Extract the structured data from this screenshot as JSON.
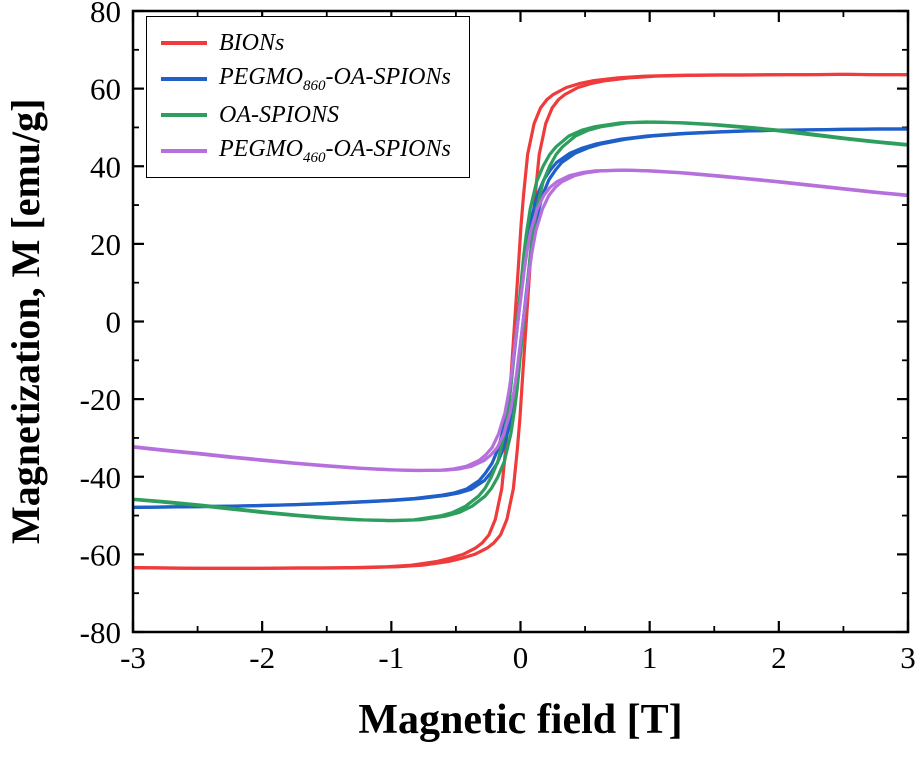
{
  "figure": {
    "background": "#ffffff",
    "frame_color": "#000000"
  },
  "chart_data": {
    "type": "line",
    "title": "",
    "xlabel": "Magnetic field [T]",
    "ylabel": "Magnetization, M [emu/g]",
    "xlim": [
      -3,
      3
    ],
    "ylim": [
      -80,
      80
    ],
    "x_ticks": [
      -3,
      -2,
      -1,
      0,
      1,
      2,
      3
    ],
    "y_ticks": [
      -80,
      -60,
      -40,
      -20,
      0,
      20,
      40,
      60,
      80
    ],
    "x_minor_ticks": [
      -2.5,
      -1.5,
      -0.5,
      0.5,
      1.5,
      2.5
    ],
    "y_minor_ticks": [
      -70,
      -50,
      -30,
      -10,
      10,
      30,
      50,
      70
    ],
    "grid": false,
    "legend_position": "top-left",
    "x_unit": "T",
    "y_unit": "emu/g",
    "x": [
      -3,
      -2.75,
      -2.5,
      -2.25,
      -2,
      -1.75,
      -1.5,
      -1.25,
      -1,
      -0.8,
      -0.6,
      -0.5,
      -0.4,
      -0.3,
      -0.25,
      -0.2,
      -0.15,
      -0.1,
      -0.07,
      -0.05,
      -0.03,
      0,
      0.03,
      0.05,
      0.07,
      0.1,
      0.15,
      0.2,
      0.25,
      0.3,
      0.4,
      0.5,
      0.6,
      0.8,
      1,
      1.25,
      1.5,
      1.75,
      2,
      2.25,
      2.5,
      2.75,
      3
    ],
    "series": [
      {
        "name": "BIONs",
        "label": {
          "pre": "BIONs",
          "sub": "",
          "post": ""
        },
        "color": "#ef3b3b",
        "coercivity_T": 0.045,
        "y": [
          -63.4,
          -63.5,
          -63.6,
          -63.6,
          -63.6,
          -63.5,
          -63.5,
          -63.4,
          -63.2,
          -62.8,
          -61.8,
          -61.0,
          -60.0,
          -58.3,
          -57.0,
          -55.0,
          -51.0,
          -43.0,
          -33.0,
          -25.0,
          -15.0,
          0,
          15.0,
          25.0,
          33.0,
          43.0,
          51.0,
          55.0,
          57.2,
          58.5,
          60.3,
          61.3,
          62.0,
          62.8,
          63.2,
          63.4,
          63.5,
          63.5,
          63.6,
          63.6,
          63.7,
          63.6,
          63.6
        ]
      },
      {
        "name": "PEGMO860-OA-SPIONs",
        "label": {
          "pre": "PEGMO",
          "sub": "860",
          "post": "-OA-SPIONs"
        },
        "color": "#1e5fc8",
        "coercivity_T": 0.02,
        "y": [
          -47.9,
          -47.8,
          -47.7,
          -47.6,
          -47.4,
          -47.2,
          -46.9,
          -46.5,
          -46.1,
          -45.6,
          -44.8,
          -44.2,
          -43.2,
          -41.0,
          -39.0,
          -36.5,
          -32.5,
          -26.0,
          -20.0,
          -15.0,
          -9.0,
          0,
          9.0,
          15.0,
          20.0,
          26.0,
          32.5,
          36.5,
          39.0,
          41.0,
          43.3,
          44.7,
          45.7,
          47.0,
          47.8,
          48.4,
          48.8,
          49.1,
          49.3,
          49.4,
          49.5,
          49.6,
          49.6
        ]
      },
      {
        "name": "OA-SPIONS",
        "label": {
          "pre": "OA-SPIONS",
          "sub": "",
          "post": ""
        },
        "color": "#2e9e5e",
        "coercivity_T": 0.025,
        "y": [
          -45.8,
          -46.5,
          -47.3,
          -48.2,
          -49.1,
          -49.9,
          -50.6,
          -51.1,
          -51.3,
          -51.1,
          -50.1,
          -49.2,
          -47.6,
          -45.0,
          -43.0,
          -40.0,
          -36.0,
          -29.0,
          -22.5,
          -17.0,
          -10.0,
          0,
          10.0,
          17.0,
          22.5,
          29.0,
          36.0,
          40.0,
          43.0,
          45.0,
          47.8,
          49.3,
          50.2,
          51.2,
          51.4,
          51.2,
          50.7,
          50.0,
          49.2,
          48.2,
          47.2,
          46.3,
          45.5
        ]
      },
      {
        "name": "PEGMO460-OA-SPIONs",
        "label": {
          "pre": "PEGMO",
          "sub": "460",
          "post": "-OA-SPIONs"
        },
        "color": "#b570dd",
        "coercivity_T": 0.02,
        "y": [
          -32.3,
          -33.2,
          -34.0,
          -34.9,
          -35.7,
          -36.5,
          -37.2,
          -37.8,
          -38.2,
          -38.4,
          -38.3,
          -38.0,
          -37.3,
          -35.8,
          -34.4,
          -32.5,
          -29.0,
          -23.5,
          -18.0,
          -13.5,
          -8.0,
          0,
          8.0,
          13.5,
          18.0,
          23.5,
          29.0,
          32.5,
          34.6,
          36.0,
          37.6,
          38.4,
          38.8,
          39.0,
          38.8,
          38.3,
          37.6,
          36.8,
          36.0,
          35.1,
          34.2,
          33.3,
          32.5
        ]
      }
    ]
  }
}
